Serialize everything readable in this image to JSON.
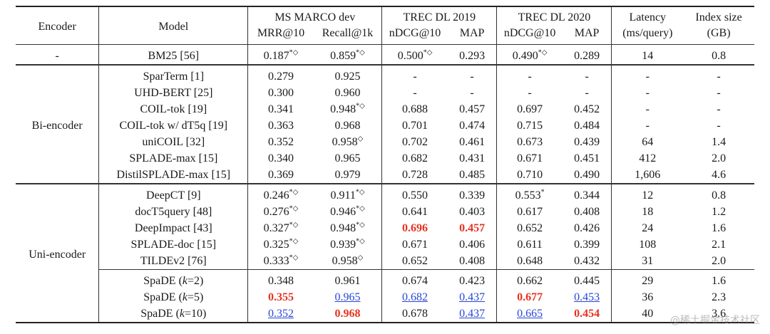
{
  "header": {
    "encoder": "Encoder",
    "model": "Model",
    "msmarco": "MS MARCO dev",
    "trec2019": "TREC DL 2019",
    "trec2020": "TREC DL 2020",
    "latency": "Latency",
    "latency_unit": "(ms/query)",
    "index": "Index size",
    "index_unit": "(GB)",
    "mrr": "MRR@10",
    "recall": "Recall@1k",
    "ndcg19": "nDCG@10",
    "map19": "MAP",
    "ndcg20": "nDCG@10",
    "map20": "MAP"
  },
  "groups": {
    "baseline": "-",
    "bi": "Bi-encoder",
    "uni": "Uni-encoder"
  },
  "rows": [
    {
      "model": "BM25 [56]",
      "mrr": "0.187",
      "mrr_s": "*◇",
      "recall": "0.859",
      "recall_s": "*◇",
      "n19": "0.500",
      "n19_s": "*◇",
      "m19": "0.293",
      "n20": "0.490",
      "n20_s": "*◇",
      "m20": "0.289",
      "lat": "14",
      "idx": "0.8"
    },
    {
      "model": "SparTerm [1]",
      "mrr": "0.279",
      "recall": "0.925",
      "n19": "-",
      "m19": "-",
      "n20": "-",
      "m20": "-",
      "lat": "-",
      "idx": "-"
    },
    {
      "model": "UHD-BERT [25]",
      "mrr": "0.300",
      "recall": "0.960",
      "n19": "-",
      "m19": "-",
      "n20": "-",
      "m20": "-",
      "lat": "-",
      "idx": "-"
    },
    {
      "model": "COIL-tok [19]",
      "mrr": "0.341",
      "recall": "0.948",
      "recall_s": "*◇",
      "n19": "0.688",
      "m19": "0.457",
      "n20": "0.697",
      "m20": "0.452",
      "lat": "-",
      "idx": "-"
    },
    {
      "model": "COIL-tok w/ dT5q [19]",
      "mrr": "0.363",
      "recall": "0.968",
      "n19": "0.701",
      "m19": "0.474",
      "n20": "0.715",
      "m20": "0.484",
      "lat": "-",
      "idx": "-"
    },
    {
      "model": "uniCOIL [32]",
      "mrr": "0.352",
      "recall": "0.958",
      "recall_s": "◇",
      "n19": "0.702",
      "m19": "0.461",
      "n20": "0.673",
      "m20": "0.439",
      "lat": "64",
      "idx": "1.4"
    },
    {
      "model": "SPLADE-max [15]",
      "mrr": "0.340",
      "recall": "0.965",
      "n19": "0.682",
      "m19": "0.431",
      "n20": "0.671",
      "m20": "0.451",
      "lat": "412",
      "idx": "2.0"
    },
    {
      "model": "DistilSPLADE-max [15]",
      "mrr": "0.369",
      "recall": "0.979",
      "n19": "0.728",
      "m19": "0.485",
      "n20": "0.710",
      "m20": "0.490",
      "lat": "1,606",
      "idx": "4.6"
    },
    {
      "model": "DeepCT [9]",
      "mrr": "0.246",
      "mrr_s": "*◇",
      "recall": "0.911",
      "recall_s": "*◇",
      "n19": "0.550",
      "m19": "0.339",
      "n20": "0.553",
      "n20_s": "*",
      "m20": "0.344",
      "lat": "12",
      "idx": "0.8"
    },
    {
      "model": "docT5query [48]",
      "mrr": "0.276",
      "mrr_s": "*◇",
      "recall": "0.946",
      "recall_s": "*◇",
      "n19": "0.641",
      "m19": "0.403",
      "n20": "0.617",
      "m20": "0.408",
      "lat": "18",
      "idx": "1.2"
    },
    {
      "model": "DeepImpact [43]",
      "mrr": "0.327",
      "mrr_s": "*◇",
      "recall": "0.948",
      "recall_s": "*◇",
      "n19": "0.696",
      "m19": "0.457",
      "n20": "0.652",
      "m20": "0.426",
      "lat": "24",
      "idx": "1.6"
    },
    {
      "model": "SPLADE-doc [15]",
      "mrr": "0.325",
      "mrr_s": "*◇",
      "recall": "0.939",
      "recall_s": "*◇",
      "n19": "0.671",
      "m19": "0.406",
      "n20": "0.611",
      "m20": "0.399",
      "lat": "108",
      "idx": "2.1"
    },
    {
      "model": "TILDEv2 [76]",
      "mrr": "0.333",
      "mrr_s": "*◇",
      "recall": "0.958",
      "recall_s": "◇",
      "n19": "0.652",
      "m19": "0.408",
      "n20": "0.648",
      "m20": "0.432",
      "lat": "31",
      "idx": "2.0"
    },
    {
      "model_a": "SpaDE (",
      "model_k": "k",
      "model_b": "=2)",
      "mrr": "0.348",
      "recall": "0.961",
      "n19": "0.674",
      "m19": "0.423",
      "n20": "0.662",
      "m20": "0.445",
      "lat": "29",
      "idx": "1.6"
    },
    {
      "model_a": "SpaDE (",
      "model_k": "k",
      "model_b": "=5)",
      "mrr": "0.355",
      "recall": "0.965",
      "n19": "0.682",
      "m19": "0.437",
      "n20": "0.677",
      "m20": "0.453",
      "lat": "36",
      "idx": "2.3"
    },
    {
      "model_a": "SpaDE (",
      "model_k": "k",
      "model_b": "=10)",
      "mrr": "0.352",
      "recall": "0.968",
      "n19": "0.678",
      "m19": "0.437",
      "n20": "0.665",
      "m20": "0.454",
      "lat": "40",
      "idx": "3.6"
    }
  ],
  "watermark": "@稀土掘金技术社区"
}
